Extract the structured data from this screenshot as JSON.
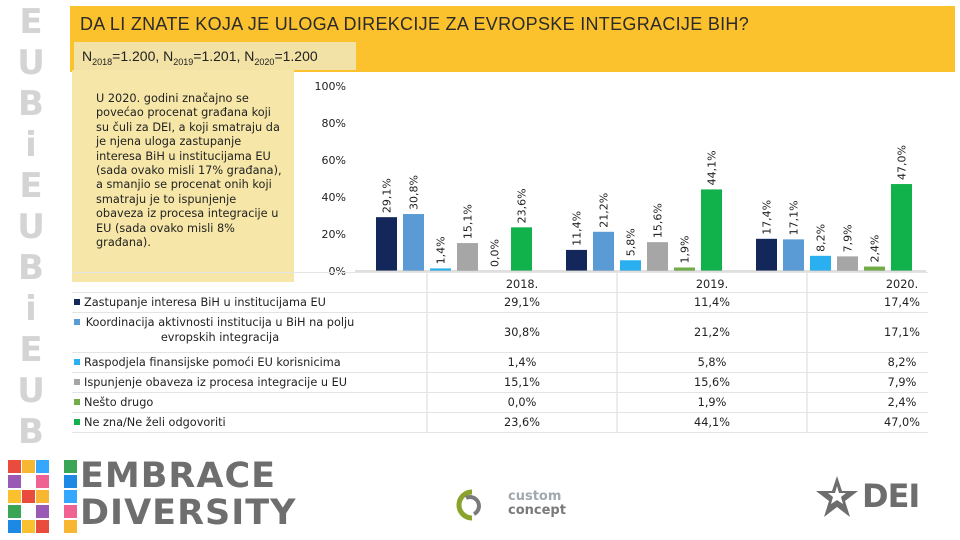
{
  "header": {
    "title": "DA LI ZNATE KOJA JE ULOGA DIREKCIJE ZA EVROPSKE INTEGRACIJE BIH?",
    "sample": {
      "n": "N",
      "y1": "2018",
      "v1": "=1.200, N",
      "y2": "2019",
      "v2": "=1.201, N",
      "y3": "2020",
      "v3": "=1.200"
    }
  },
  "note": "U 2020. godini značajno se povećao procenat građana koji su čuli za DEI, a koji smatraju da je njena uloga zastupanje interesa BiH u institucijama EU (sada ovako misli 17% građana), a smanjio se procenat onih koji smatraju je to ispunjenje obaveza iz procesa integracije u EU (sada ovako misli 8% građana).",
  "chart_data": {
    "type": "bar",
    "categories": [
      "2018.",
      "2019.",
      "2020."
    ],
    "ylim": [
      0,
      100
    ],
    "yticks": [
      "0%",
      "20%",
      "40%",
      "60%",
      "80%",
      "100%"
    ],
    "series": [
      {
        "name": "Zastupanje interesa BiH u institucijama EU",
        "color": "#13275a",
        "values": [
          29.1,
          11.4,
          17.4
        ],
        "labels": [
          "29,1%",
          "11,4%",
          "17,4%"
        ]
      },
      {
        "name": "Koordinacija aktivnosti institucija u BiH na polju evropskih integracija",
        "color": "#5b9bd5",
        "values": [
          30.8,
          21.2,
          17.1
        ],
        "labels": [
          "30,8%",
          "21,2%",
          "17,1%"
        ]
      },
      {
        "name": "Raspodjela finansijske pomoći EU korisnicima",
        "color": "#2ab0f0",
        "values": [
          1.4,
          5.8,
          8.2
        ],
        "labels": [
          "1,4%",
          "5,8%",
          "8,2%"
        ]
      },
      {
        "name": "Ispunjenje obaveza iz procesa integracije u EU",
        "color": "#a6a6a6",
        "values": [
          15.1,
          15.6,
          7.9
        ],
        "labels": [
          "15,1%",
          "15,6%",
          "7,9%"
        ]
      },
      {
        "name": "Nešto drugo",
        "color": "#70ad47",
        "values": [
          0.0,
          1.9,
          2.4
        ],
        "labels": [
          "0,0%",
          "1,9%",
          "2,4%"
        ]
      },
      {
        "name": "Ne zna/Ne želi odgovoriti",
        "color": "#11b14c",
        "values": [
          23.6,
          44.1,
          47.0
        ],
        "labels": [
          "23,6%",
          "44,1%",
          "47,0%"
        ]
      }
    ]
  },
  "logos": {
    "left_strip": [
      "E",
      "U",
      "B",
      "i",
      "E",
      "U",
      "B",
      "i",
      "E",
      "U",
      "B"
    ],
    "embrace_line1": "EMBRACE",
    "embrace_line2": "DIVERSITY",
    "custom_line1": "custom",
    "custom_line2": "concept",
    "dei": "DEI"
  }
}
